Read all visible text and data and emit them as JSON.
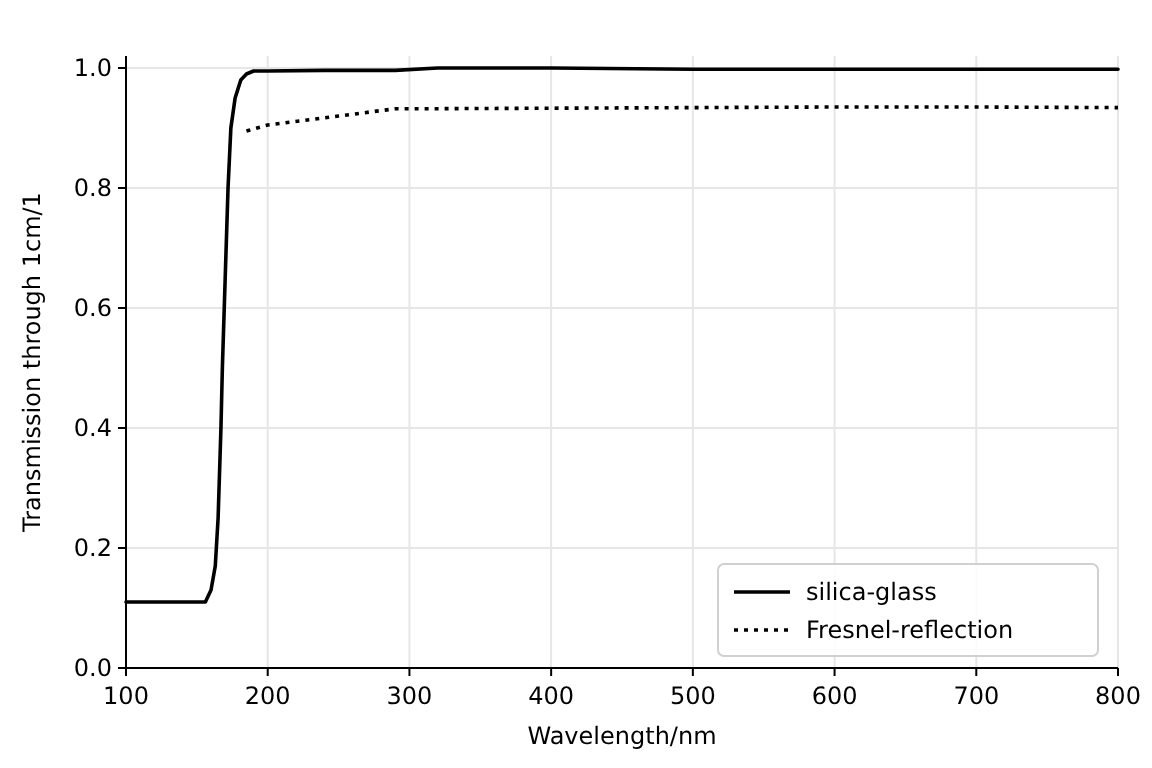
{
  "chart_data": {
    "type": "line",
    "xlabel": "Wavelength/nm",
    "ylabel": "Transmission through 1cm/1",
    "xlim": [
      100,
      800
    ],
    "xticks": [
      100,
      200,
      300,
      400,
      500,
      600,
      700,
      800
    ],
    "ylim": [
      0,
      1.02
    ],
    "yticks": [
      {
        "value": 0,
        "label": "0.0"
      },
      {
        "value": 0.2,
        "label": "0.2"
      },
      {
        "value": 0.4,
        "label": "0.4"
      },
      {
        "value": 0.6,
        "label": "0.6"
      },
      {
        "value": 0.8,
        "label": "0.8"
      },
      {
        "value": 1,
        "label": "1.0"
      }
    ],
    "grid": true,
    "legend": "bottom right",
    "series": [
      {
        "name": "silica-glass",
        "color": "#000000",
        "line_style": "solid",
        "x": [
          100,
          156,
          160,
          163,
          165,
          167,
          168,
          170,
          172,
          174,
          177,
          181,
          185,
          190,
          200,
          240,
          290,
          320,
          400,
          500,
          600,
          700,
          800
        ],
        "values": [
          0.11,
          0.11,
          0.13,
          0.17,
          0.25,
          0.4,
          0.5,
          0.65,
          0.8,
          0.9,
          0.95,
          0.98,
          0.99,
          0.995,
          0.995,
          0.996,
          0.996,
          1.0,
          1.0,
          0.998,
          0.998,
          0.998,
          0.998
        ]
      },
      {
        "name": "Fresnel-reflection",
        "color": "#000000",
        "line_style": "dotted",
        "x": [
          185,
          200,
          250,
          290,
          300,
          400,
          500,
          600,
          700,
          800
        ],
        "values": [
          0.895,
          0.905,
          0.92,
          0.932,
          0.932,
          0.933,
          0.934,
          0.935,
          0.935,
          0.934
        ]
      }
    ]
  }
}
